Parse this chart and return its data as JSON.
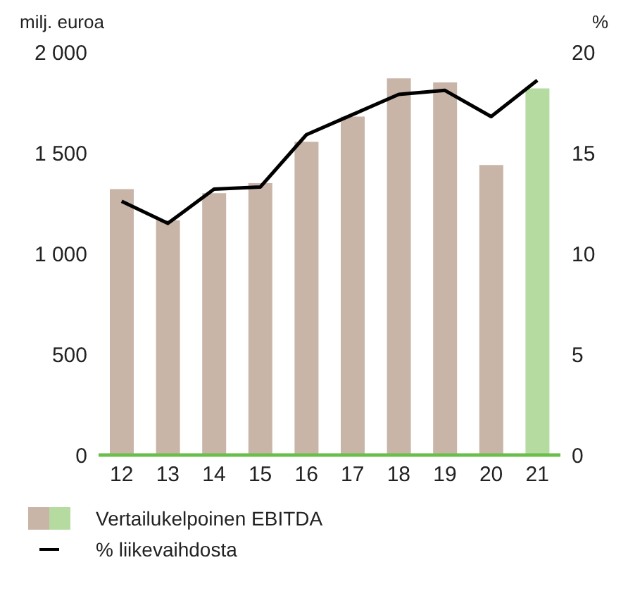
{
  "chart_data": {
    "type": "bar",
    "ylabel": "milj. euroa",
    "y2label": "%",
    "categories": [
      "12",
      "13",
      "14",
      "15",
      "16",
      "17",
      "18",
      "19",
      "20",
      "21"
    ],
    "series": [
      {
        "name": "Vertailukelpoinen EBITDA",
        "colors": [
          "#c8b5a8",
          "#c8b5a8",
          "#c8b5a8",
          "#c8b5a8",
          "#c8b5a8",
          "#c8b5a8",
          "#c8b5a8",
          "#c8b5a8",
          "#c8b5a8",
          "#b5dba0"
        ],
        "values": [
          1320,
          1165,
          1300,
          1350,
          1555,
          1680,
          1870,
          1850,
          1440,
          1820
        ]
      },
      {
        "name": "% liikevaihdosta",
        "type": "line",
        "axis": "y2",
        "color": "#000000",
        "values": [
          12.6,
          11.5,
          13.2,
          13.3,
          15.9,
          16.9,
          17.9,
          18.1,
          16.8,
          18.6
        ]
      }
    ],
    "ylim": [
      0,
      2000
    ],
    "yticks": [
      0,
      {
        "value": 500,
        "label": "500"
      },
      {
        "value": 1000,
        "label": "1 000"
      },
      {
        "value": 1500,
        "label": "1 500"
      },
      {
        "value": 2000,
        "label": "2 000"
      }
    ],
    "y2lim": [
      0,
      20
    ],
    "y2ticks": [
      0,
      5,
      10,
      15,
      20
    ],
    "grid": false,
    "legend": "bottom",
    "marker": "none",
    "line_style": "solid"
  }
}
